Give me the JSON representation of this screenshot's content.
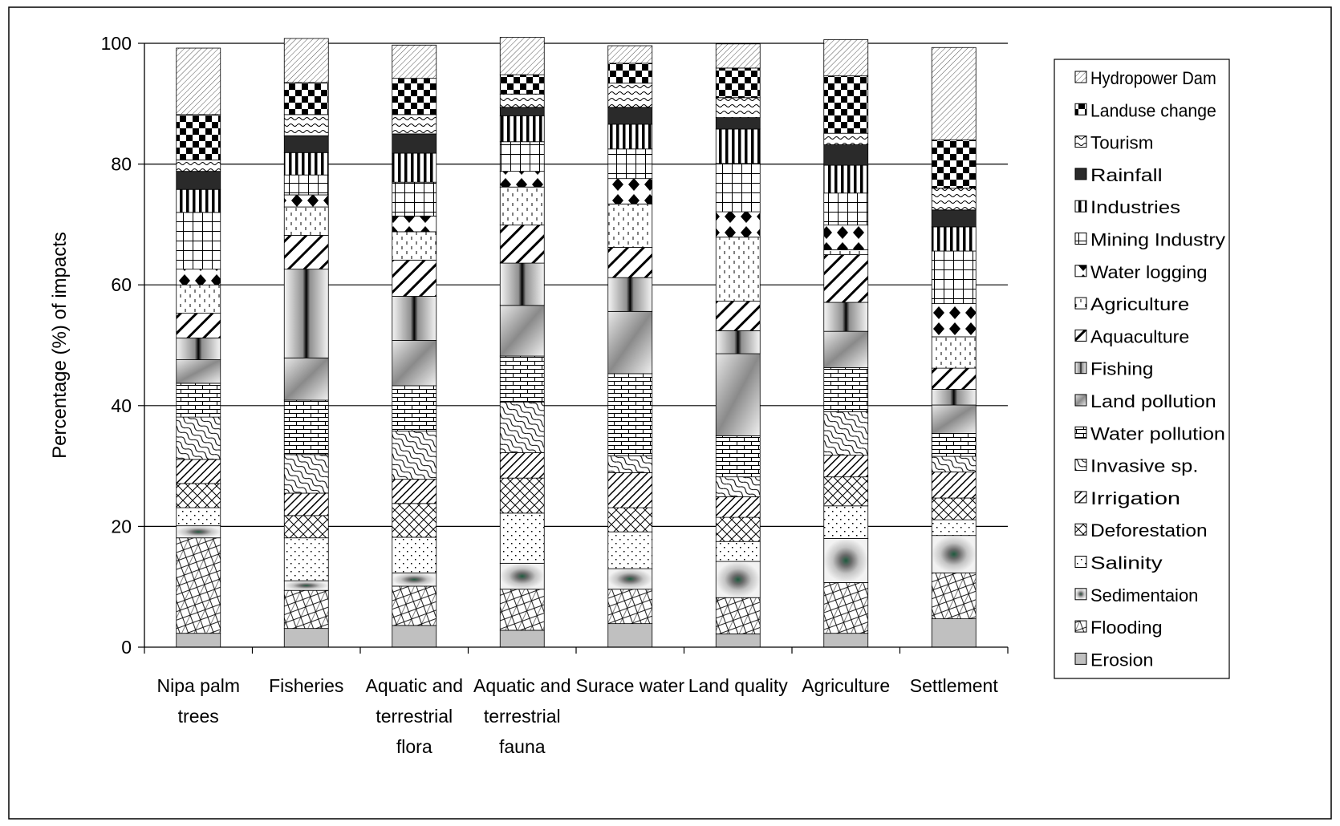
{
  "chart_data": {
    "type": "bar",
    "stacked": true,
    "title": "",
    "xlabel": "",
    "ylabel": "Percentage (%) of impacts",
    "ylim": [
      0,
      100
    ],
    "yticks": [
      "0",
      "20",
      "40",
      "60",
      "80",
      "100"
    ],
    "grid": true,
    "legend_position": "right",
    "categories": [
      [
        "Nipa palm",
        "trees"
      ],
      [
        "Fisheries"
      ],
      [
        "Aquatic and",
        "terrestrial",
        "flora"
      ],
      [
        "Aquatic and",
        "terrestrial",
        "fauna"
      ],
      [
        "Surace water"
      ],
      [
        "Land quality"
      ],
      [
        "Agriculture"
      ],
      [
        "Settlement"
      ]
    ],
    "series": [
      {
        "name": "Erosion",
        "pattern": "solid-gray",
        "values": [
          2.3,
          3.1,
          3.6,
          2.8,
          3.9,
          2.2,
          2.3,
          4.7
        ]
      },
      {
        "name": "Flooding",
        "pattern": "crosshatch",
        "values": [
          15.8,
          6.3,
          6.5,
          6.8,
          5.7,
          6.0,
          8.4,
          7.6
        ]
      },
      {
        "name": "Sedimentaion",
        "pattern": "square-grad",
        "values": [
          2.0,
          1.6,
          2.2,
          4.3,
          3.4,
          6.0,
          7.3,
          6.2
        ]
      },
      {
        "name": "Salinity",
        "pattern": "dots",
        "values": [
          3.0,
          7.1,
          5.9,
          8.3,
          6.1,
          3.3,
          5.4,
          2.6
        ]
      },
      {
        "name": "Deforestation",
        "pattern": "diamond-grid",
        "values": [
          4.0,
          3.7,
          5.6,
          5.8,
          4.0,
          4.0,
          4.8,
          3.6
        ]
      },
      {
        "name": "Irrigation",
        "pattern": "diag-dense",
        "values": [
          4.0,
          3.7,
          4.0,
          4.2,
          5.8,
          3.4,
          3.6,
          4.3
        ]
      },
      {
        "name": "Invasive sp.",
        "pattern": "waves",
        "values": [
          7.0,
          6.4,
          8.0,
          8.4,
          2.8,
          3.3,
          7.2,
          2.6
        ]
      },
      {
        "name": "Water pollution",
        "pattern": "bricks",
        "values": [
          5.6,
          9.0,
          7.5,
          7.6,
          13.6,
          6.8,
          7.3,
          3.8
        ]
      },
      {
        "name": "Land pollution",
        "pattern": "diag-grad",
        "values": [
          3.9,
          7.0,
          7.5,
          8.4,
          10.3,
          13.6,
          6.0,
          4.7
        ]
      },
      {
        "name": "Fishing",
        "pattern": "v-grad",
        "values": [
          3.6,
          14.7,
          7.3,
          7.0,
          5.6,
          3.8,
          4.8,
          2.6
        ]
      },
      {
        "name": "Aquaculture",
        "pattern": "diag-wide",
        "values": [
          4.1,
          5.6,
          6.0,
          6.3,
          5.0,
          4.9,
          7.9,
          3.5
        ]
      },
      {
        "name": "Agriculture",
        "pattern": "dashes",
        "values": [
          4.7,
          4.7,
          4.7,
          6.3,
          7.2,
          10.6,
          0.8,
          5.2
        ]
      },
      {
        "name": "Water logging",
        "pattern": "diamonds",
        "values": [
          2.6,
          2.0,
          2.6,
          2.6,
          4.2,
          4.2,
          4.1,
          5.5
        ]
      },
      {
        "name": "Mining Industry",
        "pattern": "grid",
        "values": [
          9.4,
          3.3,
          5.6,
          4.9,
          4.9,
          8.0,
          5.3,
          8.7
        ]
      },
      {
        "name": "Industries",
        "pattern": "vlines",
        "values": [
          3.8,
          3.7,
          4.8,
          4.3,
          4.1,
          5.7,
          4.6,
          4.0
        ]
      },
      {
        "name": "Rainfall",
        "pattern": "solid-dark",
        "values": [
          3.0,
          2.8,
          3.2,
          1.4,
          2.8,
          1.9,
          3.4,
          2.8
        ]
      },
      {
        "name": "Tourism",
        "pattern": "waves-small",
        "values": [
          1.9,
          3.5,
          3.2,
          2.2,
          4.0,
          3.3,
          1.9,
          3.6
        ]
      },
      {
        "name": "Landuse change",
        "pattern": "checker",
        "values": [
          7.5,
          5.3,
          6.0,
          3.2,
          3.3,
          4.9,
          9.5,
          8.0
        ]
      },
      {
        "name": "Hydropower Dam",
        "pattern": "hatch-thin",
        "values": [
          11.0,
          7.3,
          5.5,
          6.2,
          2.9,
          4.0,
          6.0,
          15.3
        ]
      }
    ]
  }
}
